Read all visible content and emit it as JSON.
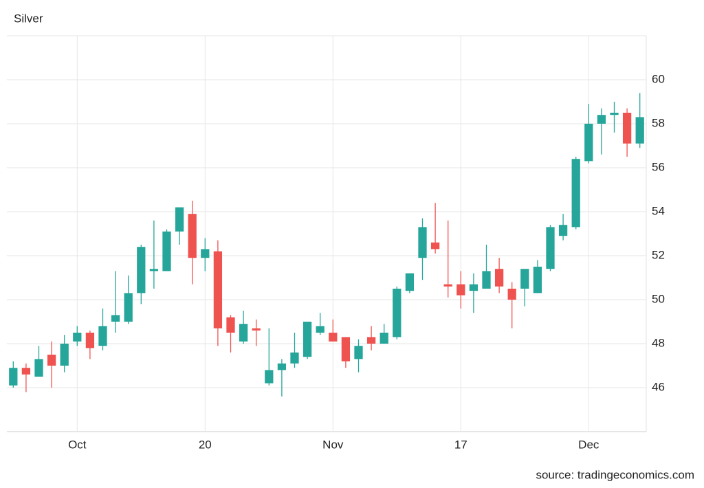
{
  "chart_data": {
    "type": "candlestick",
    "title": "Silver",
    "source": "source: tradingeconomics.com",
    "categories": [
      null,
      null,
      null,
      null,
      null,
      "Oct",
      null,
      null,
      null,
      null,
      null,
      null,
      null,
      null,
      null,
      "20",
      null,
      null,
      null,
      null,
      null,
      null,
      null,
      null,
      null,
      "Nov",
      null,
      null,
      null,
      null,
      null,
      null,
      null,
      null,
      null,
      "17",
      null,
      null,
      null,
      null,
      null,
      null,
      null,
      null,
      null,
      "Dec",
      null,
      null,
      null,
      null
    ],
    "open": [
      46.1,
      46.9,
      46.5,
      47.5,
      47.0,
      48.1,
      48.5,
      47.9,
      49.0,
      49.0,
      50.3,
      51.3,
      51.3,
      53.1,
      53.9,
      51.9,
      52.2,
      49.2,
      48.1,
      48.7,
      46.2,
      46.8,
      47.1,
      47.4,
      48.5,
      48.5,
      48.3,
      47.3,
      48.3,
      48.0,
      48.3,
      50.4,
      51.9,
      52.6,
      50.7,
      50.7,
      50.4,
      50.5,
      51.4,
      50.5,
      50.5,
      50.3,
      51.4,
      52.9,
      53.3,
      56.3,
      58.0,
      58.4,
      58.5,
      57.1
    ],
    "high": [
      47.2,
      47.1,
      47.9,
      48.1,
      48.4,
      48.8,
      48.6,
      49.6,
      51.3,
      51.1,
      52.5,
      53.6,
      53.2,
      54.2,
      54.5,
      52.8,
      52.7,
      49.3,
      49.5,
      49.1,
      48.7,
      47.3,
      48.5,
      49.0,
      49.4,
      49.1,
      48.3,
      48.2,
      48.8,
      48.9,
      50.6,
      51.2,
      53.7,
      54.4,
      53.6,
      51.3,
      51.2,
      52.5,
      51.9,
      50.8,
      51.4,
      51.8,
      53.4,
      53.9,
      56.5,
      58.9,
      58.7,
      59.0,
      58.7,
      59.4
    ],
    "low": [
      46.0,
      45.8,
      46.5,
      46.0,
      46.7,
      47.9,
      47.3,
      47.7,
      48.5,
      48.9,
      49.8,
      50.5,
      51.3,
      52.5,
      50.7,
      51.3,
      47.9,
      47.6,
      48.0,
      47.9,
      46.1,
      45.6,
      46.9,
      47.3,
      48.4,
      48.1,
      46.9,
      46.7,
      47.7,
      48.0,
      48.2,
      50.3,
      50.9,
      52.1,
      50.1,
      49.6,
      49.4,
      50.5,
      50.3,
      48.7,
      49.7,
      50.3,
      51.3,
      52.7,
      53.2,
      56.2,
      56.6,
      57.6,
      56.5,
      56.9
    ],
    "close": [
      46.9,
      46.6,
      47.3,
      47.0,
      48.0,
      48.5,
      47.8,
      48.8,
      49.3,
      50.3,
      52.4,
      51.4,
      53.1,
      54.2,
      51.9,
      52.3,
      48.7,
      48.5,
      48.9,
      48.6,
      46.8,
      47.1,
      47.6,
      49.0,
      48.8,
      48.1,
      47.2,
      47.9,
      48.0,
      48.5,
      50.5,
      51.2,
      53.3,
      52.3,
      50.6,
      50.2,
      50.7,
      51.3,
      50.6,
      50.0,
      51.4,
      51.5,
      53.3,
      53.4,
      56.4,
      58.0,
      58.4,
      58.5,
      57.1,
      58.3
    ],
    "up_color": "#26a69a",
    "down_color": "#ef5350",
    "ylim": [
      44,
      62
    ],
    "yticks": [
      46,
      48,
      50,
      52,
      54,
      56,
      58,
      60
    ],
    "grid": true,
    "y_axis_side": "right"
  }
}
